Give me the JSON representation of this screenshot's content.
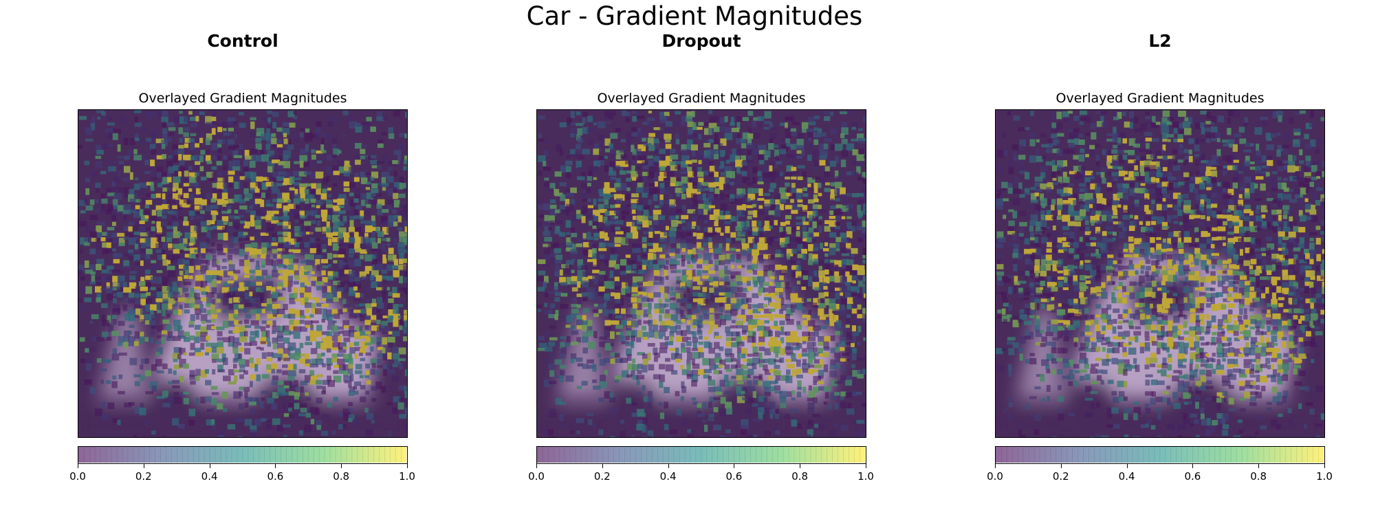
{
  "suptitle": "Car - Gradient Magnitudes",
  "colors": {
    "viridis": [
      "#440154",
      "#3b528b",
      "#21918c",
      "#5ec962",
      "#fde725"
    ],
    "background_tint": "#4a2c5c",
    "car_silhouette": "#cbb6d6"
  },
  "chart_data": [
    {
      "type": "heatmap",
      "panel_title": "Control",
      "title": "Overlayed Gradient Magnitudes",
      "colormap": "viridis",
      "overlay_alpha": 0.5,
      "clim": [
        0.0,
        1.0
      ],
      "colorbar": {
        "orientation": "horizontal",
        "ticks": [
          "0.0",
          "0.2",
          "0.4",
          "0.6",
          "0.8",
          "1.0"
        ]
      },
      "seed": 11
    },
    {
      "type": "heatmap",
      "panel_title": "Dropout",
      "title": "Overlayed Gradient Magnitudes",
      "colormap": "viridis",
      "overlay_alpha": 0.5,
      "clim": [
        0.0,
        1.0
      ],
      "colorbar": {
        "orientation": "horizontal",
        "ticks": [
          "0.0",
          "0.2",
          "0.4",
          "0.6",
          "0.8",
          "1.0"
        ]
      },
      "seed": 23
    },
    {
      "type": "heatmap",
      "panel_title": "L2",
      "title": "Overlayed Gradient Magnitudes",
      "colormap": "viridis",
      "overlay_alpha": 0.5,
      "clim": [
        0.0,
        1.0
      ],
      "colorbar": {
        "orientation": "horizontal",
        "ticks": [
          "0.0",
          "0.2",
          "0.4",
          "0.6",
          "0.8",
          "1.0"
        ]
      },
      "seed": 37
    }
  ]
}
